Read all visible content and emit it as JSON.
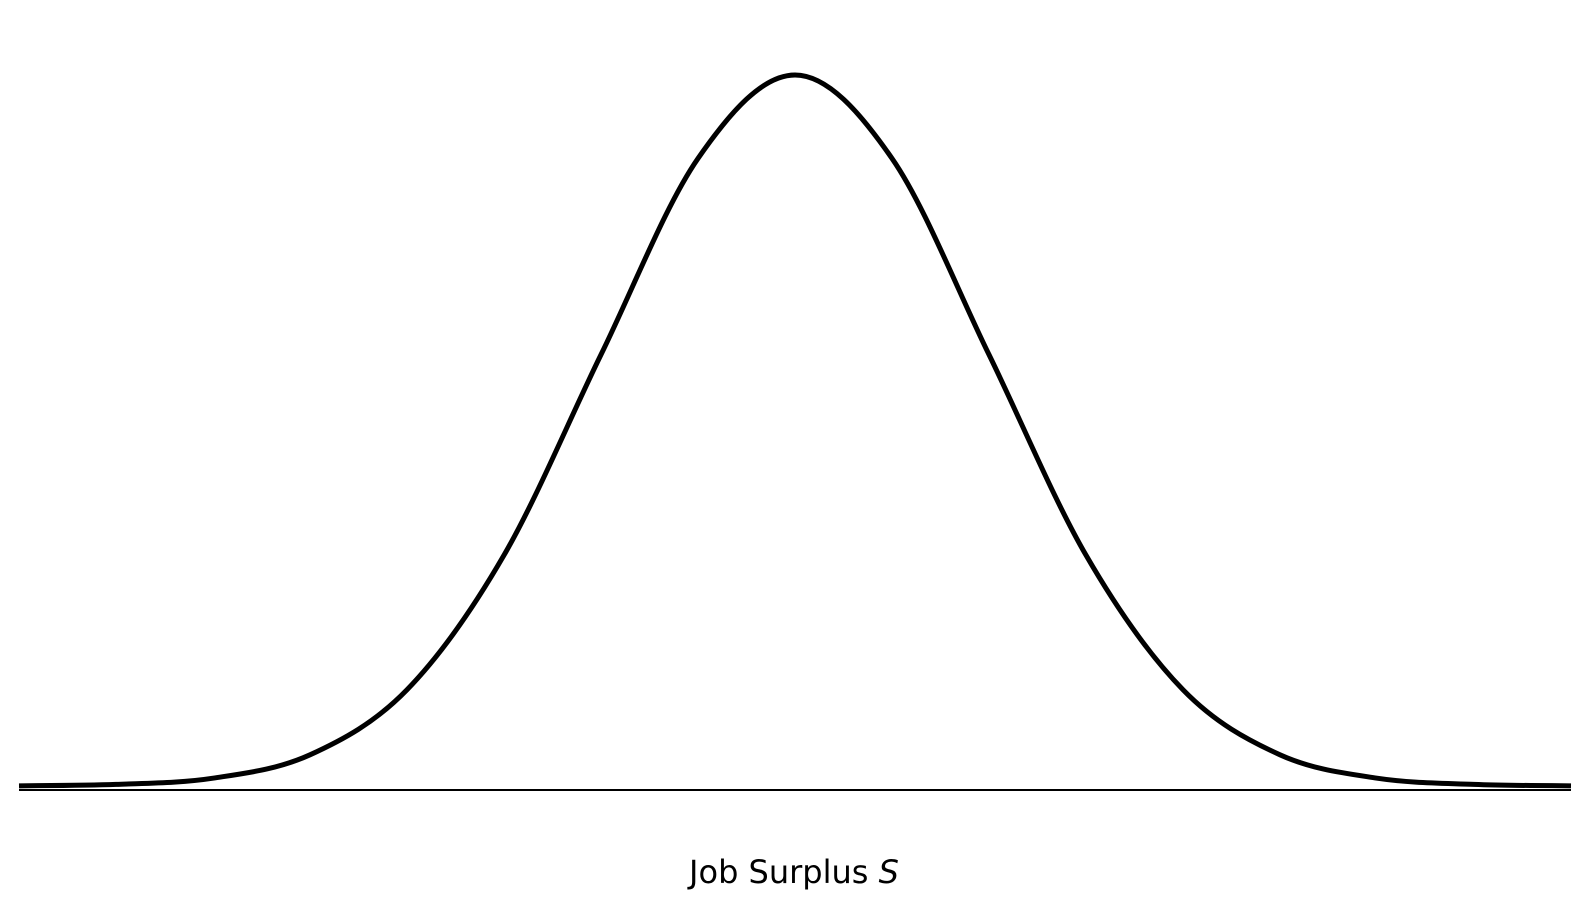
{
  "chart_data": {
    "type": "line",
    "title": "",
    "xlabel": "Job Surplus",
    "xlabel_variable": "S",
    "ylabel": "",
    "xlim": [
      -4,
      4
    ],
    "ylim": [
      0,
      0.4
    ],
    "grid": false,
    "axes": {
      "x_ticks": false,
      "y_axis": false
    },
    "series": [
      {
        "x": [
          -4,
          -3.5,
          -3,
          -2.5,
          -2,
          -1.5,
          -1,
          -0.5,
          0,
          0.5,
          1,
          1.5,
          2,
          2.5,
          3,
          3.5,
          4
        ],
        "y": [
          0.0001,
          0.0009,
          0.0044,
          0.0175,
          0.054,
          0.1295,
          0.242,
          0.3521,
          0.3989,
          0.3521,
          0.242,
          0.1295,
          0.054,
          0.0175,
          0.0044,
          0.0009,
          0.0001
        ],
        "color": "#000000"
      }
    ]
  }
}
